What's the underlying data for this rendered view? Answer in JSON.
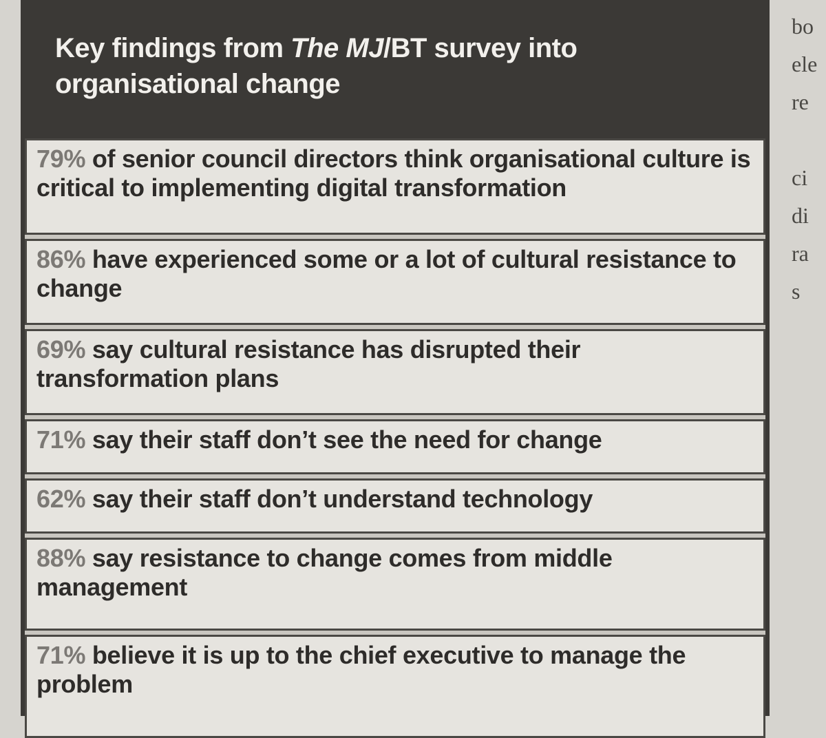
{
  "header": {
    "title_start": "Key findings from",
    "title_italic": "The MJ",
    "title_end": "/BT survey into organisational change"
  },
  "findings": [
    {
      "percent": "79%",
      "text": "of senior council directors think organisational culture is critical to implementing digital transformation"
    },
    {
      "percent": "86%",
      "text": "have experienced some or a lot of cultural resistance to change"
    },
    {
      "percent": "69%",
      "text": "say cultural resistance has disrupted their transformation plans"
    },
    {
      "percent": "71%",
      "text": "say their staff don’t see the need for change"
    },
    {
      "percent": "62%",
      "text": "say their staff don’t understand technology"
    },
    {
      "percent": "88%",
      "text": "say resistance to change comes from middle management"
    },
    {
      "percent": "71%",
      "text": "believe it is up to the chief executive to manage the problem"
    }
  ],
  "margin_fragments": [
    "bo",
    "ele",
    "re",
    "ci",
    "di",
    "ra",
    "s"
  ]
}
